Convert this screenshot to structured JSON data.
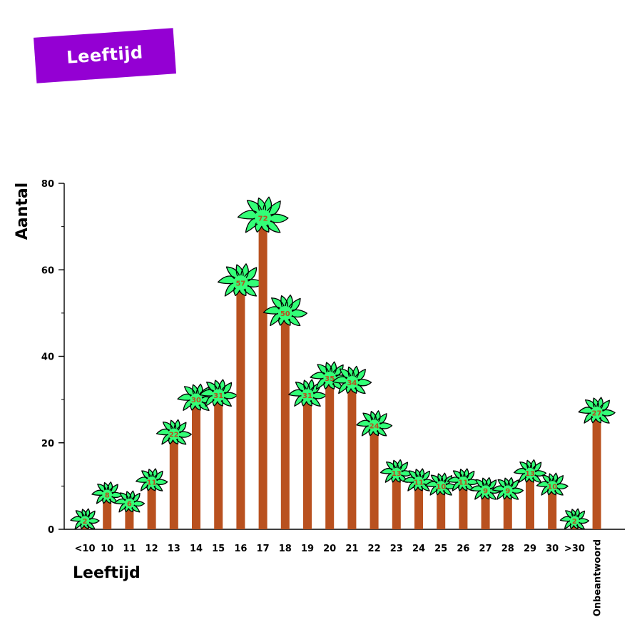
{
  "header": {
    "badge_label": "Leeftijd"
  },
  "colors": {
    "badge": "#9400d3",
    "trunk": "#b9511f",
    "leaves": "#33ff77",
    "leaf_outline": "#000000",
    "label": "#b9511f"
  },
  "chart_data": {
    "type": "bar",
    "title": "",
    "xlabel": "Leeftijd",
    "ylabel": "Aantal",
    "ylim": [
      0,
      80
    ],
    "yticks": [
      0,
      20,
      40,
      60,
      80
    ],
    "grid": false,
    "categories": [
      "<10",
      "10",
      "11",
      "12",
      "13",
      "14",
      "15",
      "16",
      "17",
      "18",
      "19",
      "20",
      "21",
      "22",
      "23",
      "24",
      "25",
      "26",
      "27",
      "28",
      "29",
      "30",
      ">30",
      "Onbeantwoord"
    ],
    "values": [
      2,
      8,
      6,
      11,
      22,
      30,
      31,
      57,
      72,
      50,
      31,
      35,
      34,
      24,
      13,
      11,
      10,
      11,
      9,
      9,
      13,
      10,
      2,
      27
    ],
    "mark_style": "palm-tree"
  }
}
